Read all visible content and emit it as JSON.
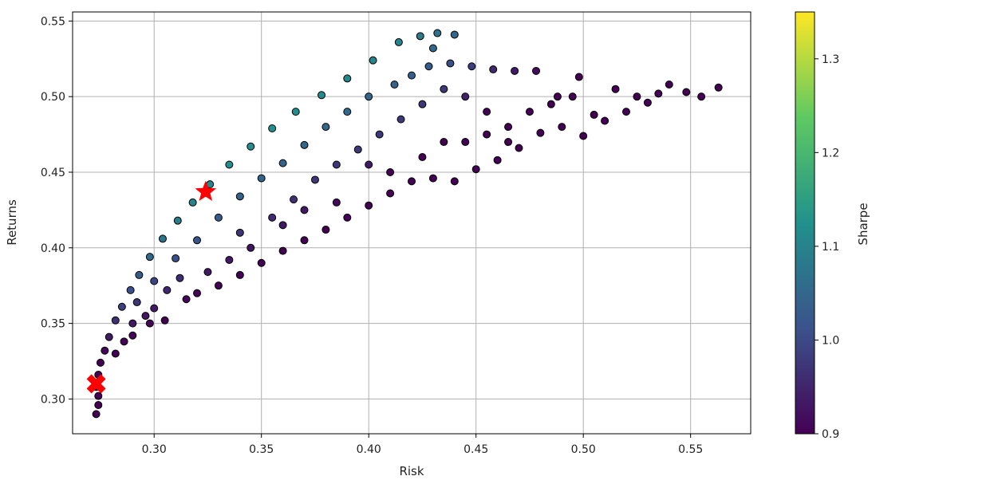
{
  "chart_data": {
    "type": "scatter",
    "title": "",
    "xlabel": "Risk",
    "ylabel": "Returns",
    "xlim": [
      0.262,
      0.578
    ],
    "ylim": [
      0.277,
      0.556
    ],
    "xticks": [
      "0.30",
      "0.35",
      "0.40",
      "0.45",
      "0.50",
      "0.55"
    ],
    "yticks": [
      "0.30",
      "0.35",
      "0.40",
      "0.45",
      "0.50",
      "0.55"
    ],
    "grid": true,
    "colormap": "viridis",
    "colorbar": {
      "label": "Sharpe",
      "range": [
        0.9,
        1.35
      ],
      "ticks": [
        "0.9",
        "1.0",
        "1.1",
        "1.2",
        "1.3"
      ]
    },
    "series": [
      {
        "marker": "circle",
        "points": [
          [
            0.273,
            0.29
          ],
          [
            0.274,
            0.296
          ],
          [
            0.274,
            0.302
          ],
          [
            0.273,
            0.308
          ],
          [
            0.274,
            0.316
          ],
          [
            0.275,
            0.324
          ],
          [
            0.277,
            0.332
          ],
          [
            0.279,
            0.341
          ],
          [
            0.282,
            0.352
          ],
          [
            0.285,
            0.361
          ],
          [
            0.289,
            0.372
          ],
          [
            0.293,
            0.382
          ],
          [
            0.298,
            0.394
          ],
          [
            0.304,
            0.406
          ],
          [
            0.311,
            0.418
          ],
          [
            0.318,
            0.43
          ],
          [
            0.326,
            0.442
          ],
          [
            0.335,
            0.455
          ],
          [
            0.345,
            0.467
          ],
          [
            0.355,
            0.479
          ],
          [
            0.366,
            0.49
          ],
          [
            0.378,
            0.501
          ],
          [
            0.39,
            0.512
          ],
          [
            0.402,
            0.524
          ],
          [
            0.414,
            0.536
          ],
          [
            0.424,
            0.54
          ],
          [
            0.432,
            0.542
          ],
          [
            0.44,
            0.541
          ],
          [
            0.43,
            0.532
          ],
          [
            0.282,
            0.33
          ],
          [
            0.29,
            0.342
          ],
          [
            0.296,
            0.355
          ],
          [
            0.3,
            0.36
          ],
          [
            0.306,
            0.372
          ],
          [
            0.312,
            0.38
          ],
          [
            0.32,
            0.37
          ],
          [
            0.33,
            0.375
          ],
          [
            0.34,
            0.382
          ],
          [
            0.35,
            0.39
          ],
          [
            0.36,
            0.398
          ],
          [
            0.37,
            0.405
          ],
          [
            0.38,
            0.412
          ],
          [
            0.39,
            0.42
          ],
          [
            0.4,
            0.428
          ],
          [
            0.41,
            0.436
          ],
          [
            0.42,
            0.444
          ],
          [
            0.43,
            0.446
          ],
          [
            0.44,
            0.444
          ],
          [
            0.45,
            0.452
          ],
          [
            0.46,
            0.458
          ],
          [
            0.47,
            0.466
          ],
          [
            0.48,
            0.476
          ],
          [
            0.49,
            0.48
          ],
          [
            0.5,
            0.474
          ],
          [
            0.51,
            0.484
          ],
          [
            0.52,
            0.49
          ],
          [
            0.53,
            0.496
          ],
          [
            0.54,
            0.508
          ],
          [
            0.548,
            0.503
          ],
          [
            0.555,
            0.5
          ],
          [
            0.563,
            0.506
          ],
          [
            0.535,
            0.502
          ],
          [
            0.525,
            0.5
          ],
          [
            0.515,
            0.505
          ],
          [
            0.505,
            0.488
          ],
          [
            0.498,
            0.513
          ],
          [
            0.488,
            0.5
          ],
          [
            0.478,
            0.517
          ],
          [
            0.468,
            0.517
          ],
          [
            0.458,
            0.518
          ],
          [
            0.448,
            0.52
          ],
          [
            0.438,
            0.522
          ],
          [
            0.428,
            0.52
          ],
          [
            0.42,
            0.514
          ],
          [
            0.412,
            0.508
          ],
          [
            0.4,
            0.5
          ],
          [
            0.39,
            0.49
          ],
          [
            0.38,
            0.48
          ],
          [
            0.37,
            0.468
          ],
          [
            0.36,
            0.456
          ],
          [
            0.35,
            0.446
          ],
          [
            0.34,
            0.434
          ],
          [
            0.33,
            0.42
          ],
          [
            0.32,
            0.405
          ],
          [
            0.31,
            0.393
          ],
          [
            0.3,
            0.378
          ],
          [
            0.292,
            0.364
          ],
          [
            0.34,
            0.41
          ],
          [
            0.355,
            0.42
          ],
          [
            0.365,
            0.432
          ],
          [
            0.375,
            0.445
          ],
          [
            0.385,
            0.455
          ],
          [
            0.395,
            0.465
          ],
          [
            0.405,
            0.475
          ],
          [
            0.415,
            0.485
          ],
          [
            0.425,
            0.495
          ],
          [
            0.435,
            0.505
          ],
          [
            0.445,
            0.5
          ],
          [
            0.455,
            0.49
          ],
          [
            0.465,
            0.48
          ],
          [
            0.475,
            0.49
          ],
          [
            0.485,
            0.495
          ],
          [
            0.495,
            0.5
          ],
          [
            0.445,
            0.47
          ],
          [
            0.455,
            0.475
          ],
          [
            0.465,
            0.47
          ],
          [
            0.425,
            0.46
          ],
          [
            0.435,
            0.47
          ],
          [
            0.41,
            0.45
          ],
          [
            0.4,
            0.455
          ],
          [
            0.385,
            0.43
          ],
          [
            0.37,
            0.425
          ],
          [
            0.36,
            0.415
          ],
          [
            0.345,
            0.4
          ],
          [
            0.335,
            0.392
          ],
          [
            0.325,
            0.384
          ],
          [
            0.315,
            0.366
          ],
          [
            0.305,
            0.352
          ],
          [
            0.298,
            0.35
          ],
          [
            0.29,
            0.35
          ],
          [
            0.286,
            0.338
          ]
        ]
      }
    ],
    "highlights": [
      {
        "marker": "star",
        "x": 0.324,
        "y": 0.437,
        "color": "#ff0000"
      },
      {
        "marker": "x",
        "x": 0.273,
        "y": 0.31,
        "color": "#ff0000"
      }
    ]
  }
}
